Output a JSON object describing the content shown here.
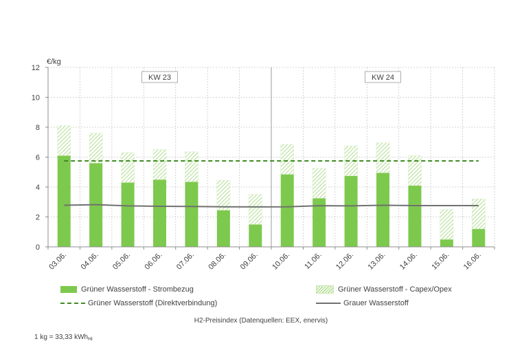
{
  "chart_data": {
    "type": "bar",
    "ylabel": "€/kg",
    "ylim": [
      0,
      12
    ],
    "yticks": [
      0,
      2,
      4,
      6,
      8,
      10,
      12
    ],
    "grid": true,
    "legend_position": "bottom",
    "categories": [
      "03.06.",
      "04.06.",
      "05.06.",
      "06.06.",
      "07.06.",
      "08.06.",
      "09.06.",
      "10.06.",
      "11.06.",
      "12.06.",
      "13.06.",
      "14.06.",
      "15.06.",
      "16.06."
    ],
    "series": [
      {
        "name": "Grüner Wasserstoff - Strombezug",
        "kind": "stacked-bar",
        "color": "#7dc94d",
        "values": [
          6.1,
          5.6,
          4.3,
          4.5,
          4.35,
          2.45,
          1.5,
          4.85,
          3.25,
          4.75,
          4.95,
          4.1,
          0.5,
          1.2
        ]
      },
      {
        "name": "Grüner Wasserstoff - Capex/Opex",
        "kind": "stacked-bar-hatched",
        "color": "#b7df97",
        "values": [
          2.0,
          2.0,
          2.0,
          2.0,
          2.0,
          2.0,
          2.0,
          2.0,
          2.0,
          2.0,
          2.0,
          2.0,
          2.0,
          2.0
        ]
      },
      {
        "name": "Grüner Wasserstoff (Direktverbindung)",
        "kind": "dashed-line",
        "color": "#3f8b24",
        "values": [
          5.75,
          5.75,
          5.75,
          5.75,
          5.75,
          5.75,
          5.75,
          5.75,
          5.75,
          5.75,
          5.75,
          5.75,
          5.75,
          5.75
        ]
      },
      {
        "name": "Grauer Wasserstoff",
        "kind": "line",
        "color": "#707070",
        "values": [
          2.78,
          2.82,
          2.74,
          2.71,
          2.7,
          2.68,
          2.67,
          2.68,
          2.75,
          2.74,
          2.78,
          2.76,
          2.76,
          2.76
        ]
      }
    ],
    "week_labels": [
      {
        "label": "KW 23",
        "from_index": 0,
        "to_index": 6
      },
      {
        "label": "KW 24",
        "from_index": 7,
        "to_index": 13
      }
    ]
  },
  "caption": "H2-Preisindex (Datenquellen: EEX, enervis)",
  "footnote_main": "1 kg = 33,33 kWh",
  "footnote_sub": "Hi"
}
